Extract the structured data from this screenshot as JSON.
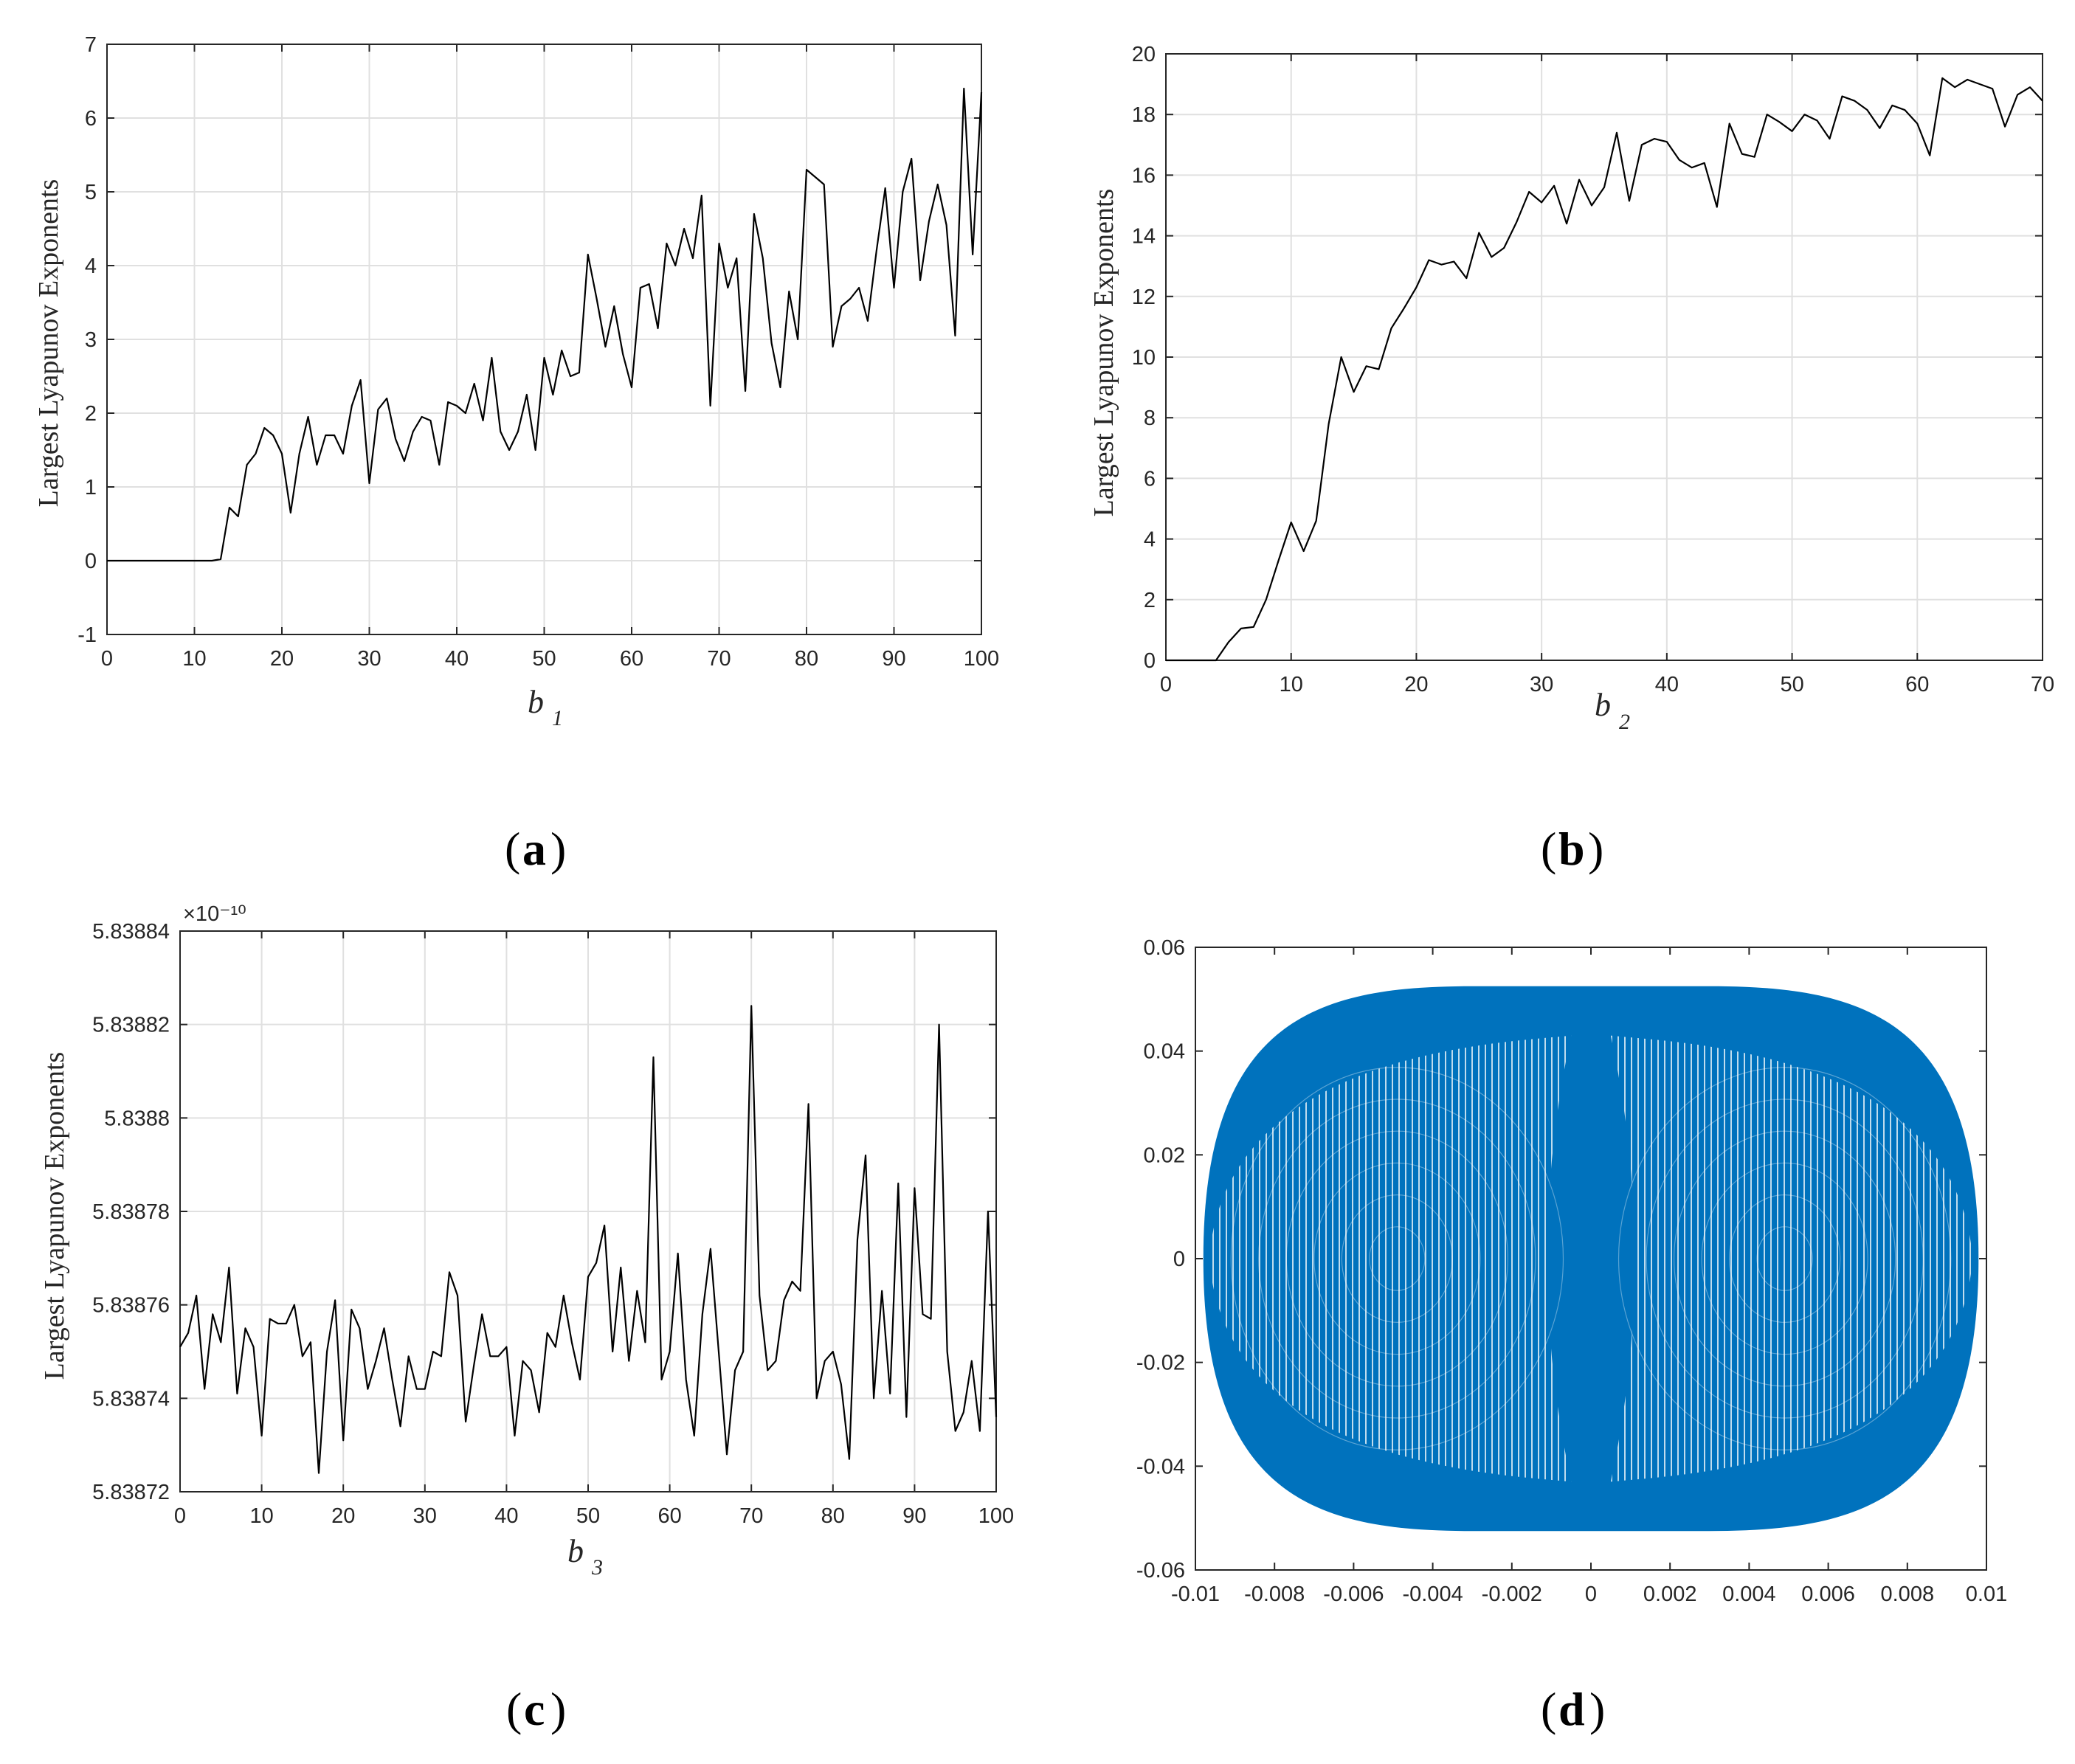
{
  "chart_data": [
    {
      "panel": "a",
      "type": "line",
      "ylabel": "Largest Lyapunov Exponents",
      "xlabel": "b",
      "xlabel_sub": "1",
      "caption": "a",
      "xlim": [
        0,
        100
      ],
      "ylim": [
        -1,
        7
      ],
      "xticks": [
        0,
        10,
        20,
        30,
        40,
        50,
        60,
        70,
        80,
        90,
        100
      ],
      "yticks": [
        -1,
        0,
        1,
        2,
        3,
        4,
        5,
        6,
        7
      ],
      "grid": true,
      "color": "#000000",
      "x": [
        0,
        1,
        2,
        3,
        4,
        5,
        6,
        7,
        8,
        9,
        10,
        11,
        12,
        13,
        14,
        15,
        16,
        17,
        18,
        19,
        20,
        21,
        22,
        23,
        24,
        25,
        26,
        27,
        28,
        29,
        30,
        31,
        32,
        33,
        34,
        35,
        36,
        37,
        38,
        39,
        40,
        41,
        42,
        43,
        44,
        45,
        46,
        47,
        48,
        49,
        50,
        51,
        52,
        53,
        54,
        55,
        56,
        57,
        58,
        59,
        60,
        61,
        62,
        63,
        64,
        65,
        66,
        67,
        68,
        69,
        70,
        71,
        72,
        73,
        74,
        75,
        76,
        77,
        78,
        79,
        80,
        81,
        82,
        83,
        84,
        85,
        86,
        87,
        88,
        89,
        90,
        91,
        92,
        93,
        94,
        95,
        96,
        97,
        98,
        99,
        100
      ],
      "y": [
        0,
        0,
        0,
        0,
        0,
        0,
        0,
        0,
        0,
        0,
        0,
        0,
        0,
        0.02,
        0.72,
        0.6,
        1.3,
        1.45,
        1.8,
        1.7,
        1.45,
        0.65,
        1.45,
        1.95,
        1.3,
        1.7,
        1.7,
        1.45,
        2.1,
        2.45,
        1.05,
        2.05,
        2.2,
        1.65,
        1.35,
        1.75,
        1.95,
        1.9,
        1.3,
        2.15,
        2.1,
        2.0,
        2.4,
        1.9,
        2.75,
        1.75,
        1.5,
        1.75,
        2.25,
        1.5,
        2.75,
        2.25,
        2.85,
        2.5,
        2.55,
        4.15,
        3.55,
        2.9,
        3.45,
        2.8,
        2.35,
        3.7,
        3.75,
        3.15,
        4.3,
        4.0,
        4.5,
        4.1,
        4.95,
        2.1,
        4.3,
        3.7,
        4.1,
        2.3,
        4.7,
        4.1,
        2.95,
        2.35,
        3.65,
        3.0,
        5.3,
        5.2,
        5.1,
        2.9,
        3.45,
        3.55,
        3.7,
        3.25,
        4.2,
        5.05,
        3.7,
        5.0,
        5.45,
        3.8,
        4.6,
        5.1,
        4.55,
        3.05,
        6.4,
        4.15,
        6.35
      ]
    },
    {
      "panel": "b",
      "type": "line",
      "ylabel": "Largest Lyapunov Exponents",
      "xlabel": "b",
      "xlabel_sub": "2",
      "caption": "b",
      "xlim": [
        0,
        70
      ],
      "ylim": [
        0,
        20
      ],
      "xticks": [
        0,
        10,
        20,
        30,
        40,
        50,
        60,
        70
      ],
      "yticks": [
        0,
        2,
        4,
        6,
        8,
        10,
        12,
        14,
        16,
        18,
        20
      ],
      "grid": true,
      "color": "#000000",
      "x": [
        0,
        1,
        2,
        3,
        4,
        5,
        6,
        7,
        8,
        9,
        10,
        11,
        12,
        13,
        14,
        15,
        16,
        17,
        18,
        19,
        20,
        21,
        22,
        23,
        24,
        25,
        26,
        27,
        28,
        29,
        30,
        31,
        32,
        33,
        34,
        35,
        36,
        37,
        38,
        39,
        40,
        41,
        42,
        43,
        44,
        45,
        46,
        47,
        48,
        49,
        50,
        51,
        52,
        53,
        54,
        55,
        56,
        57,
        58,
        59,
        60,
        61,
        62,
        63,
        64,
        65,
        66,
        67,
        68,
        69,
        70
      ],
      "y": [
        0,
        0,
        0,
        0,
        0,
        0.6,
        1.05,
        1.1,
        2.0,
        3.3,
        4.55,
        3.6,
        4.6,
        7.8,
        10.0,
        8.85,
        9.7,
        9.6,
        10.95,
        11.6,
        12.3,
        13.2,
        13.05,
        13.15,
        12.6,
        14.1,
        13.3,
        13.6,
        14.45,
        15.45,
        15.1,
        15.65,
        14.4,
        15.85,
        15.0,
        15.6,
        17.4,
        15.15,
        17.0,
        17.2,
        17.1,
        16.5,
        16.25,
        16.4,
        14.95,
        17.7,
        16.7,
        16.6,
        18.0,
        17.75,
        17.45,
        18.0,
        17.8,
        17.2,
        18.6,
        18.45,
        18.15,
        17.55,
        18.3,
        18.15,
        17.7,
        16.65,
        19.2,
        18.9,
        19.15,
        19.0,
        18.85,
        17.6,
        18.65,
        18.9,
        18.45
      ]
    },
    {
      "panel": "c",
      "type": "line",
      "ylabel": "Largest Lyapunov Exponents",
      "xlabel": "b",
      "xlabel_sub": "3",
      "caption": "c",
      "exponent_label": "×10⁻¹⁰",
      "xlim": [
        0,
        100
      ],
      "ylim": [
        5.83872,
        5.83884
      ],
      "xticks": [
        0,
        10,
        20,
        30,
        40,
        50,
        60,
        70,
        80,
        90,
        100
      ],
      "yticks": [
        5.83872,
        5.83874,
        5.83876,
        5.83878,
        5.8388,
        5.83882,
        5.83884
      ],
      "ytick_labels": [
        "5.83872",
        "5.83874",
        "5.83876",
        "5.83878",
        "5.8388",
        "5.83882",
        "5.83884"
      ],
      "grid": true,
      "color": "#000000",
      "x": [
        0,
        1,
        2,
        3,
        4,
        5,
        6,
        7,
        8,
        9,
        10,
        11,
        12,
        13,
        14,
        15,
        16,
        17,
        18,
        19,
        20,
        21,
        22,
        23,
        24,
        25,
        26,
        27,
        28,
        29,
        30,
        31,
        32,
        33,
        34,
        35,
        36,
        37,
        38,
        39,
        40,
        41,
        42,
        43,
        44,
        45,
        46,
        47,
        48,
        49,
        50,
        51,
        52,
        53,
        54,
        55,
        56,
        57,
        58,
        59,
        60,
        61,
        62,
        63,
        64,
        65,
        66,
        67,
        68,
        69,
        70,
        71,
        72,
        73,
        74,
        75,
        76,
        77,
        78,
        79,
        80,
        81,
        82,
        83,
        84,
        85,
        86,
        87,
        88,
        89,
        90,
        91,
        92,
        93,
        94,
        95,
        96,
        97,
        98,
        99,
        100
      ],
      "y": [
        5.838751,
        5.838754,
        5.838762,
        5.838742,
        5.838758,
        5.838752,
        5.838768,
        5.838741,
        5.838755,
        5.838751,
        5.838732,
        5.838757,
        5.838756,
        5.838756,
        5.83876,
        5.838749,
        5.838752,
        5.838724,
        5.83875,
        5.838761,
        5.838731,
        5.838759,
        5.838755,
        5.838742,
        5.838748,
        5.838755,
        5.838744,
        5.838734,
        5.838749,
        5.838742,
        5.838742,
        5.83875,
        5.838749,
        5.838767,
        5.838762,
        5.838735,
        5.838747,
        5.838758,
        5.838749,
        5.838749,
        5.838751,
        5.838732,
        5.838748,
        5.838746,
        5.838737,
        5.838754,
        5.838751,
        5.838762,
        5.838752,
        5.838744,
        5.838766,
        5.838769,
        5.838777,
        5.83875,
        5.838768,
        5.838748,
        5.838763,
        5.838752,
        5.838813,
        5.838744,
        5.83875,
        5.838771,
        5.838744,
        5.838732,
        5.838758,
        5.838772,
        5.83875,
        5.838728,
        5.838746,
        5.83875,
        5.838824,
        5.838762,
        5.838746,
        5.838748,
        5.838761,
        5.838765,
        5.838763,
        5.838803,
        5.83874,
        5.838748,
        5.83875,
        5.838743,
        5.838727,
        5.838774,
        5.838792,
        5.83874,
        5.838763,
        5.838741,
        5.838786,
        5.838736,
        5.838785,
        5.838758,
        5.838757,
        5.83882,
        5.83875,
        5.838733,
        5.838737,
        5.838748,
        5.838733,
        5.83878,
        5.838736
      ]
    },
    {
      "panel": "d",
      "type": "line",
      "caption": "d",
      "xlim": [
        -0.01,
        0.01
      ],
      "ylim": [
        -0.06,
        0.06
      ],
      "xticks": [
        -0.01,
        -0.008,
        -0.006,
        -0.004,
        -0.002,
        0,
        0.002,
        0.004,
        0.006,
        0.008,
        0.01
      ],
      "xtick_labels": [
        "-0.01",
        "-0.008",
        "-0.006",
        "-0.004",
        "-0.002",
        "0",
        "0.002",
        "0.004",
        "0.006",
        "0.008",
        "0.01"
      ],
      "yticks": [
        -0.06,
        -0.04,
        -0.02,
        0,
        0.02,
        0.04,
        0.06
      ],
      "ytick_labels": [
        "-0.06",
        "-0.04",
        "-0.02",
        "0",
        "0.02",
        "0.04",
        "0.06"
      ],
      "grid": false,
      "color": "#0072BD",
      "attractor": {
        "x_extent": [
          -0.0098,
          0.0098
        ],
        "y_extent": [
          -0.0525,
          0.0525
        ],
        "inner_y_extent": [
          -0.043,
          0.043
        ],
        "waist_halfwidth": 0.0005
      }
    }
  ]
}
